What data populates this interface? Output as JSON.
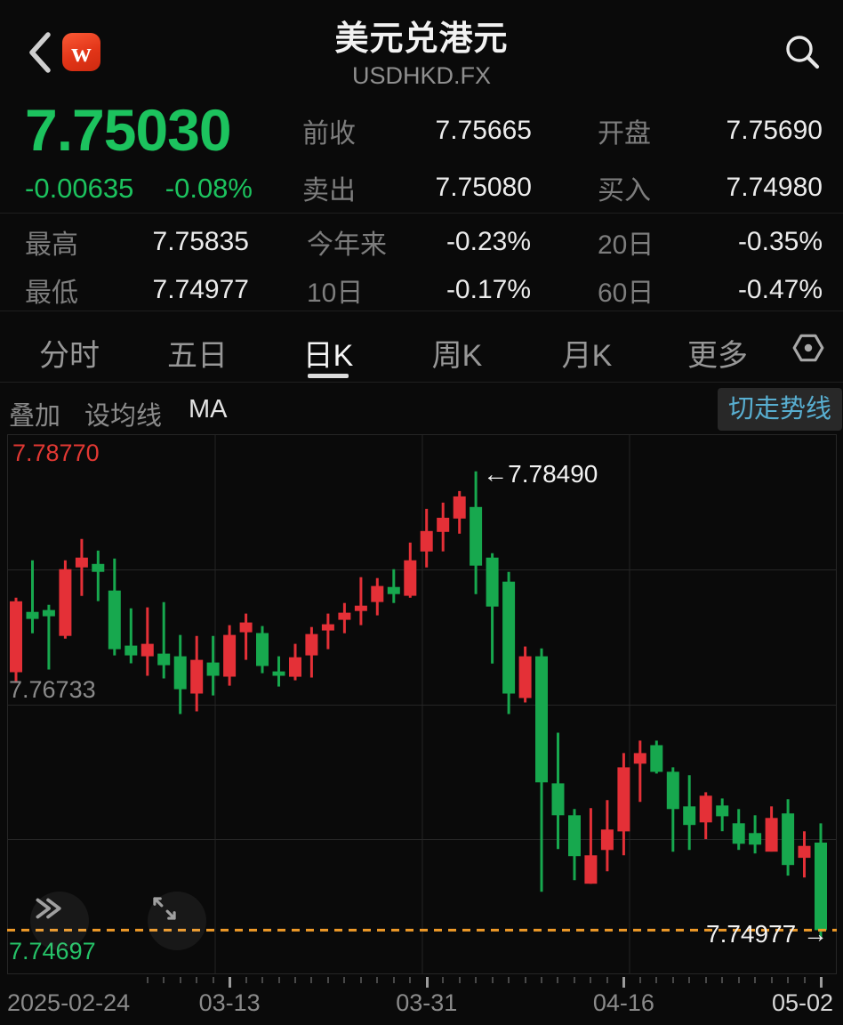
{
  "header": {
    "logo_text": "w",
    "title": "美元兑港元",
    "subtitle": "USDHKD.FX"
  },
  "icons": {
    "back": "chevron-left",
    "search": "magnifier",
    "settings": "hex-nut",
    "fast_forward": "double-chevron-right",
    "expand": "diagonal-resize-arrows"
  },
  "quote": {
    "price": "7.75030",
    "change": "-0.00635",
    "change_pct": "-0.08%",
    "fields": [
      {
        "label": "前收",
        "value": "7.75665"
      },
      {
        "label": "开盘",
        "value": "7.75690"
      },
      {
        "label": "卖出",
        "value": "7.75080"
      },
      {
        "label": "买入",
        "value": "7.74980"
      }
    ]
  },
  "stats": [
    {
      "label": "最高",
      "value": "7.75835"
    },
    {
      "label": "今年来",
      "value": "-0.23%"
    },
    {
      "label": "20日",
      "value": "-0.35%"
    },
    {
      "label": "最低",
      "value": "7.74977"
    },
    {
      "label": "10日",
      "value": "-0.17%"
    },
    {
      "label": "60日",
      "value": "-0.47%"
    }
  ],
  "tabs": {
    "items": [
      "分时",
      "五日",
      "日K",
      "周K",
      "月K",
      "更多"
    ],
    "active": "日K"
  },
  "toolbar": {
    "overlay": "叠加",
    "set_ma": "设均线",
    "ma": "MA",
    "switch_trend": "切走势线"
  },
  "colors": {
    "up_red": "#e43037",
    "down_green": "#17a84e",
    "price_green": "#1cc35e",
    "accent_orange": "#ef9a28",
    "link_blue": "#58aed0",
    "label_red": "#e23833",
    "label_green": "#25c368"
  },
  "chart_data": {
    "type": "candlestick",
    "ylim": [
      7.74697,
      7.7877
    ],
    "grid_prices": [
      7.7877,
      7.77752,
      7.76733,
      7.75715,
      7.74697
    ],
    "last_price_line": 7.7503,
    "left_labels": {
      "top": "7.78770",
      "mid": "7.76733",
      "bottom": "7.74697"
    },
    "annotations": {
      "high": "←7.78490",
      "high_index": 28,
      "low": "7.74977 →"
    },
    "x_axis_labels": [
      {
        "text": "2025-02-24",
        "index": 0,
        "align": "left",
        "bright": false
      },
      {
        "text": "03-13",
        "index": 13,
        "align": "center",
        "bright": false
      },
      {
        "text": "03-31",
        "index": 25,
        "align": "center",
        "bright": false
      },
      {
        "text": "04-16",
        "index": 37,
        "align": "center",
        "bright": false
      },
      {
        "text": "05-02",
        "index": 49,
        "align": "right",
        "bright": true
      }
    ],
    "candles": [
      [
        "02-24",
        7.76975,
        7.77537,
        7.76894,
        7.7751
      ],
      [
        "02-25",
        7.7743,
        7.77819,
        7.77269,
        7.77377
      ],
      [
        "02-26",
        7.77444,
        7.77484,
        7.76995,
        7.77397
      ],
      [
        "02-27",
        7.77249,
        7.77819,
        7.77229,
        7.77752
      ],
      [
        "02-28",
        7.77765,
        7.7798,
        7.77551,
        7.77839
      ],
      [
        "03-03",
        7.77792,
        7.77892,
        7.77511,
        7.77732
      ],
      [
        "03-04",
        7.77591,
        7.77832,
        7.77102,
        7.77149
      ],
      [
        "03-05",
        7.77176,
        7.77457,
        7.77042,
        7.77102
      ],
      [
        "03-06",
        7.77095,
        7.77464,
        7.76948,
        7.77189
      ],
      [
        "03-07",
        7.77115,
        7.77504,
        7.76928,
        7.77028
      ],
      [
        "03-10",
        7.77095,
        7.77256,
        7.7666,
        7.76847
      ],
      [
        "03-11",
        7.76814,
        7.77249,
        7.7668,
        7.77068
      ],
      [
        "03-12",
        7.77048,
        7.77249,
        7.768,
        7.76948
      ],
      [
        "03-13",
        7.76941,
        7.7733,
        7.76874,
        7.77256
      ],
      [
        "03-14",
        7.77276,
        7.77417,
        7.77068,
        7.7735
      ],
      [
        "03-17",
        7.7727,
        7.77323,
        7.76968,
        7.77022
      ],
      [
        "03-18",
        7.76981,
        7.77095,
        7.76867,
        7.76948
      ],
      [
        "03-19",
        7.76941,
        7.77189,
        7.76914,
        7.77088
      ],
      [
        "03-20",
        7.77102,
        7.77316,
        7.76935,
        7.77263
      ],
      [
        "03-21",
        7.7729,
        7.77417,
        7.77149,
        7.77337
      ],
      [
        "03-24",
        7.7737,
        7.77497,
        7.77269,
        7.77424
      ],
      [
        "03-25",
        7.77437,
        7.77692,
        7.7733,
        7.77477
      ],
      [
        "03-26",
        7.77504,
        7.77685,
        7.77404,
        7.77625
      ],
      [
        "03-27",
        7.77618,
        7.77752,
        7.77497,
        7.77564
      ],
      [
        "03-28",
        7.77551,
        7.77953,
        7.77537,
        7.77819
      ],
      [
        "03-31",
        7.77886,
        7.78207,
        7.77765,
        7.7804
      ],
      [
        "04-01",
        7.78033,
        7.78254,
        7.77886,
        7.7814
      ],
      [
        "04-02",
        7.78134,
        7.78341,
        7.7802,
        7.78301
      ],
      [
        "04-03",
        7.78221,
        7.7849,
        7.77564,
        7.77779
      ],
      [
        "04-04",
        7.77839,
        7.77872,
        7.77041,
        7.7747
      ],
      [
        "04-07",
        7.77658,
        7.77732,
        7.7666,
        7.76814
      ],
      [
        "04-08",
        7.7678,
        7.77169,
        7.76747,
        7.77095
      ],
      [
        "04-09",
        7.77095,
        7.77155,
        7.7532,
        7.76144
      ],
      [
        "04-10",
        7.76137,
        7.76519,
        7.75641,
        7.75896
      ],
      [
        "04-11",
        7.75896,
        7.75943,
        7.75407,
        7.75588
      ],
      [
        "04-14",
        7.7538,
        7.7595,
        7.7538,
        7.75594
      ],
      [
        "04-15",
        7.75635,
        7.7601,
        7.75474,
        7.75789
      ],
      [
        "04-16",
        7.75775,
        7.76365,
        7.75595,
        7.76258
      ],
      [
        "04-17",
        7.76285,
        7.76459,
        7.75997,
        7.76365
      ],
      [
        "04-18",
        7.76425,
        7.76459,
        7.76211,
        7.76224
      ],
      [
        "04-21",
        7.76224,
        7.76258,
        7.75621,
        7.75943
      ],
      [
        "04-22",
        7.75963,
        7.76198,
        7.75635,
        7.75823
      ],
      [
        "04-23",
        7.75843,
        7.7607,
        7.75716,
        7.76044
      ],
      [
        "04-24",
        7.7597,
        7.76023,
        7.75776,
        7.75889
      ],
      [
        "04-25",
        7.75836,
        7.75943,
        7.75635,
        7.75682
      ],
      [
        "04-28",
        7.75762,
        7.75896,
        7.75608,
        7.75675
      ],
      [
        "04-29",
        7.75622,
        7.75963,
        7.75622,
        7.75876
      ],
      [
        "04-30",
        7.7591,
        7.76017,
        7.75441,
        7.75521
      ],
      [
        "05-01",
        7.75575,
        7.75775,
        7.75427,
        7.75665
      ],
      [
        "05-02",
        7.7569,
        7.75835,
        7.74977,
        7.7503
      ]
    ]
  }
}
